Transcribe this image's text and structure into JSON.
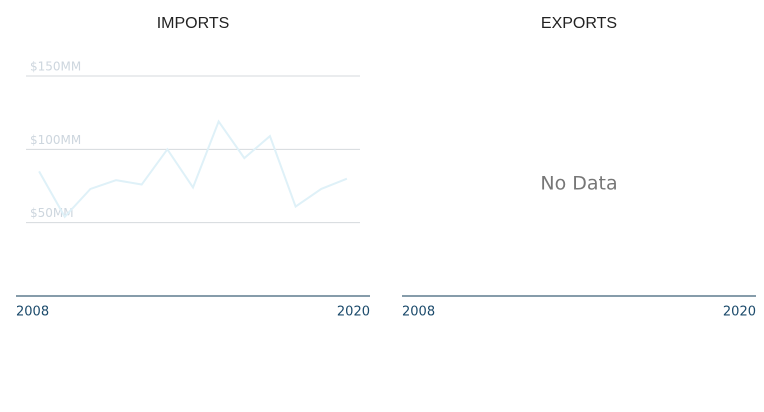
{
  "chart_data": [
    {
      "type": "line",
      "title": "IMPORTS",
      "x": [
        2008,
        2009,
        2010,
        2011,
        2012,
        2013,
        2014,
        2015,
        2016,
        2017,
        2018,
        2019,
        2020
      ],
      "series": [
        {
          "name": "Imports",
          "color": "#dff1f8",
          "values": [
            85,
            54,
            73,
            79,
            76,
            100,
            74,
            119,
            94,
            109,
            61,
            73,
            80
          ]
        }
      ],
      "xlim": [
        2007.1,
        2020.9
      ],
      "xticks": [
        2008,
        2020
      ],
      "ylim": [
        0,
        150
      ],
      "yticks": [
        {
          "value": 50,
          "label": "$50MM"
        },
        {
          "value": 100,
          "label": "$100MM"
        },
        {
          "value": 150,
          "label": "$150MM"
        }
      ],
      "grid": true
    },
    {
      "type": "line",
      "title": "EXPORTS",
      "message": "No Data",
      "xlim": [
        2007.1,
        2020.9
      ],
      "xticks": [
        2008,
        2020
      ]
    }
  ]
}
